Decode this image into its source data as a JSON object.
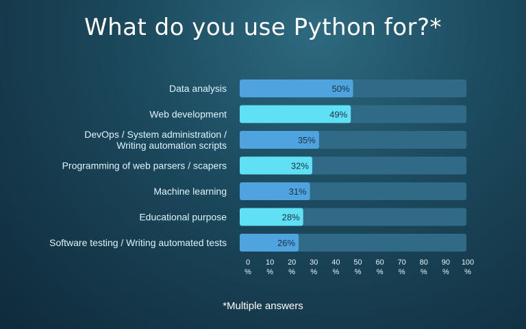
{
  "title": "What do you use Python for?*",
  "footnote": "*Multiple answers",
  "colors": {
    "track": "#2f6a86",
    "bar_a": "#4fa3de",
    "bar_b": "#5fe0f5",
    "category_text": "#dff4fb",
    "tick_text": "#e6f4fa"
  },
  "chart_data": {
    "type": "bar",
    "orientation": "horizontal",
    "title": "What do you use Python for?*",
    "categories": [
      [
        "Data analysis"
      ],
      [
        "Web development"
      ],
      [
        "DevOps / System administration /",
        "Writing automation scripts"
      ],
      [
        "Programming of web parsers / scapers"
      ],
      [
        "Machine learning"
      ],
      [
        "Educational purpose"
      ],
      [
        "Software testing / Writing automated tests"
      ]
    ],
    "values": [
      50,
      49,
      35,
      32,
      31,
      28,
      26
    ],
    "value_labels": [
      "50%",
      "49%",
      "35%",
      "32%",
      "31%",
      "28%",
      "26%"
    ],
    "xlim": [
      0,
      100
    ],
    "ticks": [
      [
        "0",
        "%"
      ],
      [
        "10",
        "%"
      ],
      [
        "20",
        "%"
      ],
      [
        "30",
        "%"
      ],
      [
        "40",
        "%"
      ],
      [
        "50",
        "%"
      ],
      [
        "60",
        "%"
      ],
      [
        "70",
        "%"
      ],
      [
        "80",
        "%"
      ],
      [
        "90",
        "%"
      ],
      [
        "100",
        "%"
      ]
    ],
    "grid": false,
    "legend": "none"
  }
}
